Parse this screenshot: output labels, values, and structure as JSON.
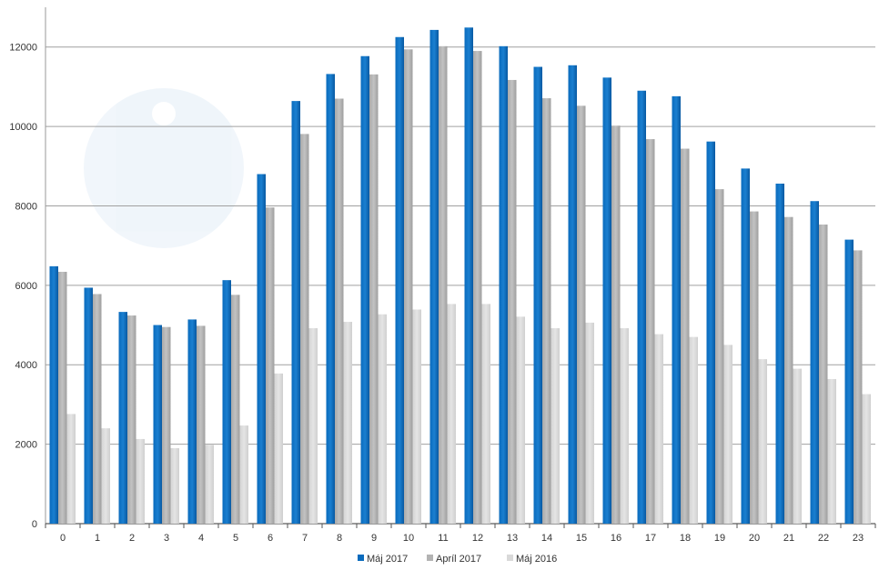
{
  "chart_data": {
    "type": "bar",
    "categories": [
      "0",
      "1",
      "2",
      "3",
      "4",
      "5",
      "6",
      "7",
      "8",
      "9",
      "10",
      "11",
      "12",
      "13",
      "14",
      "15",
      "16",
      "17",
      "18",
      "19",
      "20",
      "21",
      "22",
      "23"
    ],
    "series": [
      {
        "name": "Máj 2017",
        "color": "#0a6bbd",
        "values": [
          6480,
          5940,
          5330,
          5000,
          5140,
          6130,
          8800,
          10640,
          11320,
          11770,
          12250,
          12430,
          12490,
          12020,
          11500,
          11540,
          11230,
          10900,
          10760,
          9620,
          8940,
          8560,
          8120,
          7150
        ]
      },
      {
        "name": "Apríl 2017",
        "color": "#b3b3b3",
        "values": [
          6340,
          5780,
          5240,
          4950,
          4980,
          5760,
          7960,
          9810,
          10700,
          11310,
          11940,
          12020,
          11900,
          11170,
          10710,
          10520,
          10020,
          9680,
          9440,
          8420,
          7860,
          7720,
          7530,
          6880
        ]
      },
      {
        "name": "Máj 2016",
        "color": "#d9d9d9",
        "values": [
          2760,
          2400,
          2130,
          1900,
          1980,
          2470,
          3780,
          4920,
          5080,
          5270,
          5390,
          5530,
          5530,
          5210,
          4920,
          5060,
          4920,
          4770,
          4700,
          4500,
          4140,
          3900,
          3640,
          3260
        ]
      }
    ],
    "ylim": [
      0,
      13000
    ],
    "yticks": [
      "0",
      "2000",
      "4000",
      "6000",
      "8000",
      "10000",
      "12000"
    ],
    "grid": true,
    "legend_position": "bottom-center",
    "title": "",
    "xlabel": "",
    "ylabel": ""
  }
}
